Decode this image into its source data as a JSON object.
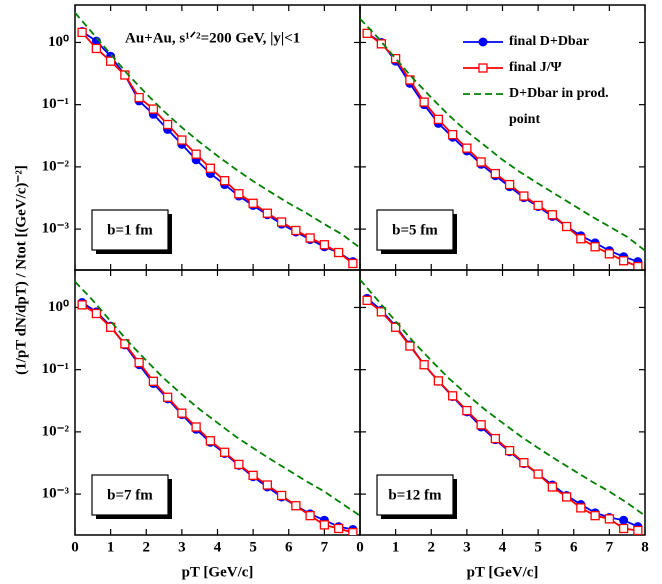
{
  "y_label": "(1/pT dN/dpT) / Ntot   [(GeV/c)⁻²]",
  "chart_data": [
    {
      "type": "line",
      "annotation": "Au+Au, s¹ᐟ²=200 GeV, |y|<1",
      "label": "b=1 fm",
      "xlim": [
        0,
        8
      ],
      "ylim": [
        0.00022,
        4
      ],
      "xticks": [
        0,
        1,
        2,
        3,
        4,
        5,
        6,
        7,
        8
      ],
      "yticks": [
        {
          "value": 1,
          "label": "10⁰"
        },
        {
          "value": 0.1,
          "label": "10⁻¹"
        },
        {
          "value": 0.01,
          "label": "10⁻²"
        },
        {
          "value": 0.001,
          "label": "10⁻³"
        }
      ],
      "series": [
        {
          "color": "#0000ff",
          "marker": "circle",
          "x": [
            0.2,
            0.6,
            1.0,
            1.4,
            1.8,
            2.2,
            2.6,
            3.0,
            3.4,
            3.8,
            4.2,
            4.6,
            5.0,
            5.4,
            5.8,
            6.2,
            6.6,
            7.0,
            7.4,
            7.8
          ],
          "values": [
            1.5,
            1.05,
            0.6,
            0.3,
            0.115,
            0.07,
            0.04,
            0.023,
            0.013,
            0.0078,
            0.0052,
            0.0034,
            0.0024,
            0.0017,
            0.0012,
            0.0009,
            0.00068,
            0.00052,
            0.00042,
            0.0003
          ]
        },
        {
          "color": "#ff0000",
          "marker": "square",
          "x": [
            0.2,
            0.6,
            1.0,
            1.4,
            1.8,
            2.2,
            2.6,
            3.0,
            3.4,
            3.8,
            4.2,
            4.6,
            5.0,
            5.4,
            5.8,
            6.2,
            6.6,
            7.0,
            7.4,
            7.8
          ],
          "values": [
            1.45,
            0.8,
            0.5,
            0.3,
            0.13,
            0.085,
            0.048,
            0.027,
            0.016,
            0.0095,
            0.006,
            0.0037,
            0.0026,
            0.0018,
            0.0013,
            0.00095,
            0.00072,
            0.00056,
            0.00042,
            0.00028
          ]
        },
        {
          "color": "#008000",
          "marker": "dash",
          "x": [
            0,
            0.5,
            1,
            1.5,
            2,
            2.5,
            3,
            3.5,
            4,
            4.5,
            5,
            5.5,
            6,
            6.5,
            7,
            7.5,
            8
          ],
          "values": [
            3.0,
            1.4,
            0.65,
            0.3,
            0.15,
            0.078,
            0.043,
            0.025,
            0.015,
            0.0093,
            0.0059,
            0.0039,
            0.0026,
            0.0018,
            0.0012,
            0.00082,
            0.0005
          ]
        }
      ]
    },
    {
      "type": "line",
      "label": "b=5 fm",
      "xlim": [
        0,
        8
      ],
      "ylim": [
        0.00022,
        4
      ],
      "xticks": [
        0,
        1,
        2,
        3,
        4,
        5,
        6,
        7,
        8
      ],
      "yticks": [
        1,
        0.1,
        0.01,
        0.001
      ],
      "series": [
        {
          "name": "final D+Dbar",
          "color": "#0000ff",
          "marker": "circle",
          "x": [
            0.2,
            0.6,
            1.0,
            1.4,
            1.8,
            2.2,
            2.6,
            3.0,
            3.4,
            3.8,
            4.2,
            4.6,
            5.0,
            5.4,
            5.8,
            6.2,
            6.6,
            7.0,
            7.4,
            7.8
          ],
          "values": [
            1.4,
            1.0,
            0.5,
            0.22,
            0.1,
            0.05,
            0.03,
            0.018,
            0.011,
            0.0072,
            0.0048,
            0.0032,
            0.0023,
            0.0016,
            0.0011,
            0.00078,
            0.0006,
            0.00045,
            0.00036,
            0.0003
          ]
        },
        {
          "name": "final J/Ψ",
          "color": "#ff0000",
          "marker": "square",
          "x": [
            0.2,
            0.6,
            1.0,
            1.4,
            1.8,
            2.2,
            2.6,
            3.0,
            3.4,
            3.8,
            4.2,
            4.6,
            5.0,
            5.4,
            5.8,
            6.2,
            6.6,
            7.0,
            7.4,
            7.8
          ],
          "values": [
            1.4,
            0.95,
            0.55,
            0.25,
            0.11,
            0.058,
            0.033,
            0.02,
            0.012,
            0.0078,
            0.0052,
            0.0034,
            0.0024,
            0.0017,
            0.0011,
            0.0007,
            0.00052,
            0.0004,
            0.00031,
            0.00025
          ]
        },
        {
          "name": "D+Dbar in prod. point",
          "color": "#008000",
          "marker": "dash",
          "x": [
            0,
            0.5,
            1,
            1.5,
            2,
            2.5,
            3,
            3.5,
            4,
            4.5,
            5,
            5.5,
            6,
            6.5,
            7,
            7.5,
            8
          ],
          "values": [
            2.4,
            1.2,
            0.55,
            0.26,
            0.13,
            0.067,
            0.037,
            0.022,
            0.013,
            0.0082,
            0.0054,
            0.0036,
            0.0024,
            0.0016,
            0.0011,
            0.00075,
            0.00045
          ]
        }
      ]
    },
    {
      "type": "line",
      "label": "b=7 fm",
      "x_label": "pT [GeV/c]",
      "xlim": [
        0,
        8
      ],
      "ylim": [
        0.00022,
        4
      ],
      "xticks": [
        0,
        1,
        2,
        3,
        4,
        5,
        6,
        7
      ],
      "yticks": [
        {
          "value": 1,
          "label": "10⁰"
        },
        {
          "value": 0.1,
          "label": "10⁻¹"
        },
        {
          "value": 0.01,
          "label": "10⁻²"
        },
        {
          "value": 0.001,
          "label": "10⁻³"
        }
      ],
      "series": [
        {
          "color": "#0000ff",
          "marker": "circle",
          "x": [
            0.2,
            0.6,
            1.0,
            1.4,
            1.8,
            2.2,
            2.6,
            3.0,
            3.4,
            3.8,
            4.2,
            4.6,
            5.0,
            5.4,
            5.8,
            6.2,
            6.6,
            7.0,
            7.4,
            7.8
          ],
          "values": [
            1.2,
            0.85,
            0.5,
            0.25,
            0.12,
            0.06,
            0.034,
            0.019,
            0.011,
            0.0068,
            0.0045,
            0.0029,
            0.0019,
            0.0013,
            0.0009,
            0.00065,
            0.00048,
            0.00038,
            0.0003,
            0.00027
          ]
        },
        {
          "color": "#ff0000",
          "marker": "square",
          "x": [
            0.2,
            0.6,
            1.0,
            1.4,
            1.8,
            2.2,
            2.6,
            3.0,
            3.4,
            3.8,
            4.2,
            4.6,
            5.0,
            5.4,
            5.8,
            6.2,
            6.6,
            7.0,
            7.4,
            7.8
          ],
          "values": [
            1.1,
            0.8,
            0.48,
            0.26,
            0.13,
            0.065,
            0.036,
            0.02,
            0.012,
            0.0072,
            0.0047,
            0.003,
            0.002,
            0.0014,
            0.00095,
            0.00065,
            0.00045,
            0.00032,
            0.00028,
            0.00024
          ]
        },
        {
          "color": "#008000",
          "marker": "dash",
          "x": [
            0,
            0.5,
            1,
            1.5,
            2,
            2.5,
            3,
            3.5,
            4,
            4.5,
            5,
            5.5,
            6,
            6.5,
            7,
            7.5,
            8
          ],
          "values": [
            2.6,
            1.3,
            0.6,
            0.28,
            0.14,
            0.072,
            0.04,
            0.023,
            0.014,
            0.0085,
            0.0055,
            0.0036,
            0.0024,
            0.0016,
            0.0011,
            0.0007,
            0.00045
          ]
        }
      ]
    },
    {
      "type": "line",
      "label": "b=12 fm",
      "x_label": "pT [GeV/c]",
      "xlim": [
        0,
        8
      ],
      "ylim": [
        0.00022,
        4
      ],
      "xticks": [
        0,
        1,
        2,
        3,
        4,
        5,
        6,
        7,
        8
      ],
      "yticks": [
        1,
        0.1,
        0.01,
        0.001
      ],
      "series": [
        {
          "color": "#0000ff",
          "marker": "circle",
          "x": [
            0.2,
            0.6,
            1.0,
            1.4,
            1.8,
            2.2,
            2.6,
            3.0,
            3.4,
            3.8,
            4.2,
            4.6,
            5.0,
            5.4,
            5.8,
            6.2,
            6.6,
            7.0,
            7.4,
            7.8
          ],
          "values": [
            1.4,
            0.9,
            0.5,
            0.25,
            0.12,
            0.065,
            0.037,
            0.021,
            0.012,
            0.0075,
            0.0048,
            0.0031,
            0.0021,
            0.0014,
            0.00095,
            0.00068,
            0.0005,
            0.00042,
            0.00038,
            0.0003
          ]
        },
        {
          "color": "#ff0000",
          "marker": "square",
          "x": [
            0.2,
            0.6,
            1.0,
            1.4,
            1.8,
            2.2,
            2.6,
            3.0,
            3.4,
            3.8,
            4.2,
            4.6,
            5.0,
            5.4,
            5.8,
            6.2,
            6.6,
            7.0,
            7.4,
            7.8
          ],
          "values": [
            1.3,
            0.85,
            0.48,
            0.24,
            0.12,
            0.066,
            0.038,
            0.022,
            0.013,
            0.0078,
            0.005,
            0.0032,
            0.0021,
            0.0013,
            0.0009,
            0.0006,
            0.00045,
            0.0004,
            0.00028,
            0.00026
          ]
        },
        {
          "color": "#008000",
          "marker": "dash",
          "x": [
            0,
            0.5,
            1,
            1.5,
            2,
            2.5,
            3,
            3.5,
            4,
            4.5,
            5,
            5.5,
            6,
            6.5,
            7,
            7.5,
            8
          ],
          "values": [
            2.8,
            1.3,
            0.6,
            0.28,
            0.14,
            0.072,
            0.04,
            0.023,
            0.014,
            0.0086,
            0.0055,
            0.0036,
            0.0024,
            0.0016,
            0.0011,
            0.00072,
            0.00045
          ]
        }
      ]
    }
  ]
}
